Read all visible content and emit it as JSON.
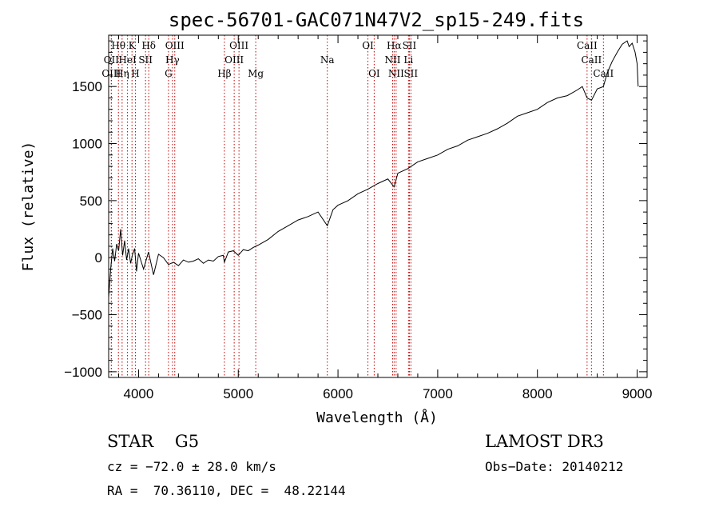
{
  "chart_data": {
    "type": "line",
    "title": "spec-56701-GAC071N47V2_sp15-249.fits",
    "xlabel": "Wavelength (Å)",
    "ylabel": "Flux (relative)",
    "xlim": [
      3700,
      9100
    ],
    "ylim": [
      -1050,
      1950
    ],
    "xticks": [
      4000,
      5000,
      6000,
      7000,
      8000,
      9000
    ],
    "yticks": [
      -1000,
      -500,
      0,
      500,
      1000,
      1500
    ],
    "series": [
      {
        "name": "flux",
        "x": [
          3700,
          3720,
          3740,
          3760,
          3780,
          3800,
          3820,
          3840,
          3860,
          3880,
          3900,
          3920,
          3940,
          3960,
          3980,
          4000,
          4050,
          4100,
          4150,
          4200,
          4250,
          4300,
          4350,
          4400,
          4450,
          4500,
          4550,
          4600,
          4650,
          4700,
          4750,
          4800,
          4850,
          4861,
          4900,
          4950,
          5000,
          5050,
          5100,
          5150,
          5200,
          5300,
          5400,
          5500,
          5600,
          5700,
          5800,
          5893,
          5950,
          6000,
          6100,
          6200,
          6300,
          6400,
          6500,
          6563,
          6600,
          6700,
          6800,
          6900,
          7000,
          7100,
          7200,
          7300,
          7400,
          7500,
          7600,
          7700,
          7800,
          7900,
          8000,
          8100,
          8200,
          8300,
          8400,
          8450,
          8498,
          8542,
          8600,
          8662,
          8700,
          8750,
          8800,
          8850,
          8900,
          8920,
          8950,
          8980,
          9000,
          9010
        ],
        "values": [
          -350,
          -100,
          80,
          -30,
          120,
          60,
          250,
          20,
          150,
          -20,
          80,
          -50,
          30,
          80,
          -120,
          40,
          -100,
          50,
          -150,
          30,
          0,
          -60,
          -40,
          -70,
          -20,
          -40,
          -30,
          -10,
          -50,
          -20,
          -30,
          10,
          20,
          -40,
          50,
          60,
          20,
          70,
          60,
          90,
          110,
          160,
          230,
          280,
          330,
          360,
          400,
          280,
          420,
          460,
          500,
          560,
          600,
          650,
          690,
          620,
          740,
          780,
          840,
          870,
          900,
          950,
          980,
          1030,
          1060,
          1090,
          1130,
          1180,
          1240,
          1270,
          1300,
          1360,
          1400,
          1420,
          1470,
          1500,
          1400,
          1380,
          1480,
          1500,
          1620,
          1720,
          1800,
          1870,
          1900,
          1850,
          1880,
          1800,
          1700,
          1500
        ]
      }
    ],
    "spectral_lines": [
      {
        "x": 3727,
        "label": "OII",
        "row": 1
      },
      {
        "x": 3727,
        "label": "OIII",
        "row": 2
      },
      {
        "x": 3798,
        "label": "Hθ",
        "row": 0
      },
      {
        "x": 3835,
        "label": "Hη",
        "row": 2
      },
      {
        "x": 3889,
        "label": "HeI",
        "row": 1
      },
      {
        "x": 3934,
        "label": "K",
        "row": 0
      },
      {
        "x": 3968,
        "label": "H",
        "row": 2
      },
      {
        "x": 4070,
        "label": "SII",
        "row": 1
      },
      {
        "x": 4102,
        "label": "Hδ",
        "row": 0
      },
      {
        "x": 4300,
        "label": "G",
        "row": 2
      },
      {
        "x": 4340,
        "label": "Hγ",
        "row": 1
      },
      {
        "x": 4363,
        "label": "OIII",
        "row": 0
      },
      {
        "x": 4861,
        "label": "Hβ",
        "row": 2
      },
      {
        "x": 4959,
        "label": "OIII",
        "row": 1
      },
      {
        "x": 5007,
        "label": "OIII",
        "row": 0
      },
      {
        "x": 5175,
        "label": "Mg",
        "row": 2
      },
      {
        "x": 5893,
        "label": "Na",
        "row": 1
      },
      {
        "x": 6300,
        "label": "OI",
        "row": 0
      },
      {
        "x": 6363,
        "label": "OI",
        "row": 2
      },
      {
        "x": 6548,
        "label": "NII",
        "row": 1
      },
      {
        "x": 6563,
        "label": "Hα",
        "row": 0
      },
      {
        "x": 6583,
        "label": "NII",
        "row": 2
      },
      {
        "x": 6707,
        "label": "Li",
        "row": 1
      },
      {
        "x": 6716,
        "label": "SII",
        "row": 0
      },
      {
        "x": 6731,
        "label": "SII",
        "row": 2
      },
      {
        "x": 8498,
        "label": "CaII",
        "row": 0
      },
      {
        "x": 8542,
        "label": "CaII",
        "row": 1
      },
      {
        "x": 8662,
        "label": "CaII",
        "row": 2
      }
    ]
  },
  "info": {
    "class_text": "STAR    G5",
    "survey": "LAMOST DR3",
    "redshift": "cz = −72.0 ± 28.0 km/s",
    "obs_date": "Obs−Date: 20140212",
    "coords": "RA =  70.36110, DEC =  48.22144"
  },
  "colors": {
    "spectrum": "#000000",
    "line_markers": "#c00000"
  }
}
